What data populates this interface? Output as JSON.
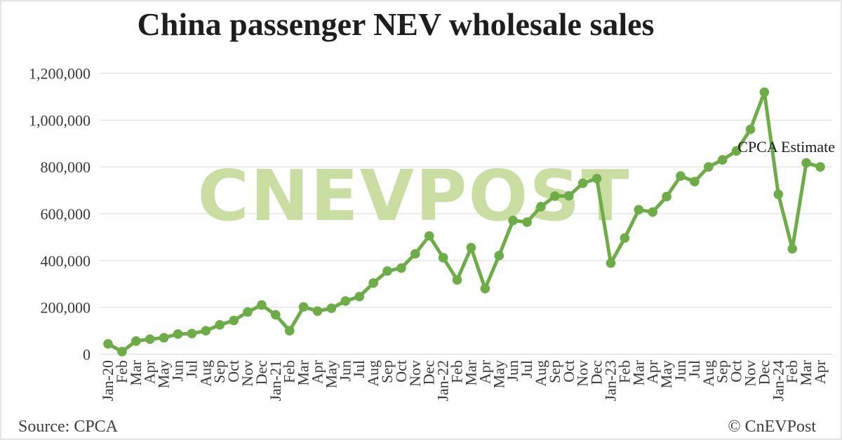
{
  "chart_data": {
    "type": "line",
    "title": "China passenger NEV wholesale sales",
    "xlabel": "",
    "ylabel": "",
    "x": [
      "Jan-20",
      "Feb",
      "Mar",
      "Apr",
      "May",
      "Jun",
      "Jul",
      "Aug",
      "Sep",
      "Oct",
      "Nov",
      "Dec",
      "Jan-21",
      "Feb",
      "Mar",
      "Apr",
      "May",
      "Jun",
      "Jul",
      "Aug",
      "Sep",
      "Oct",
      "Nov",
      "Dec",
      "Jan-22",
      "Feb",
      "Mar",
      "Apr",
      "May",
      "Jun",
      "Jul",
      "Aug",
      "Sep",
      "Oct",
      "Nov",
      "Dec",
      "Jan-23",
      "Feb",
      "Mar",
      "Apr",
      "May",
      "Jun",
      "Jul",
      "Aug",
      "Sep",
      "Oct",
      "Nov",
      "Dec",
      "Jan-24",
      "Feb",
      "Mar",
      "Apr"
    ],
    "series": [
      {
        "name": "China passenger NEV wholesale sales (units)",
        "color": "#6cad46",
        "values": [
          44000,
          11000,
          56000,
          64000,
          70000,
          86000,
          88000,
          100000,
          125000,
          144000,
          180000,
          210000,
          168000,
          100000,
          202000,
          184000,
          196000,
          227000,
          246000,
          304000,
          355000,
          368000,
          429000,
          505000,
          412000,
          317000,
          455000,
          280000,
          421000,
          571000,
          564000,
          630000,
          675000,
          676000,
          730000,
          750000,
          389000,
          496000,
          617000,
          607000,
          673000,
          761000,
          737000,
          800000,
          830000,
          868000,
          960000,
          1119000,
          683000,
          450000,
          817000,
          800000
        ]
      }
    ],
    "ylim": [
      0,
      1200000
    ],
    "yticks": [
      0,
      200000,
      400000,
      600000,
      800000,
      1000000,
      1200000
    ],
    "ytick_labels": [
      "0",
      "200,000",
      "400,000",
      "600,000",
      "800,000",
      "1,000,000",
      "1,200,000"
    ],
    "grid": "horizontal-only",
    "legend": "none",
    "annotation": {
      "text": "CPCA Estimate",
      "points_to": "Apr-24 value is a CPCA estimate"
    }
  },
  "watermark": {
    "text": "CNEVPOST",
    "color": "#cbdea2"
  },
  "footer": {
    "source": "Source: CPCA",
    "copyright": "© CnEVPost"
  },
  "colors": {
    "line": "#6cad46",
    "grid": "#d9d9d9",
    "axis_text": "#383838",
    "title_text": "#1e1e1e",
    "annotation_text": "#1a1a1a",
    "background": "#ffffff",
    "border": "#e4e4e4"
  }
}
